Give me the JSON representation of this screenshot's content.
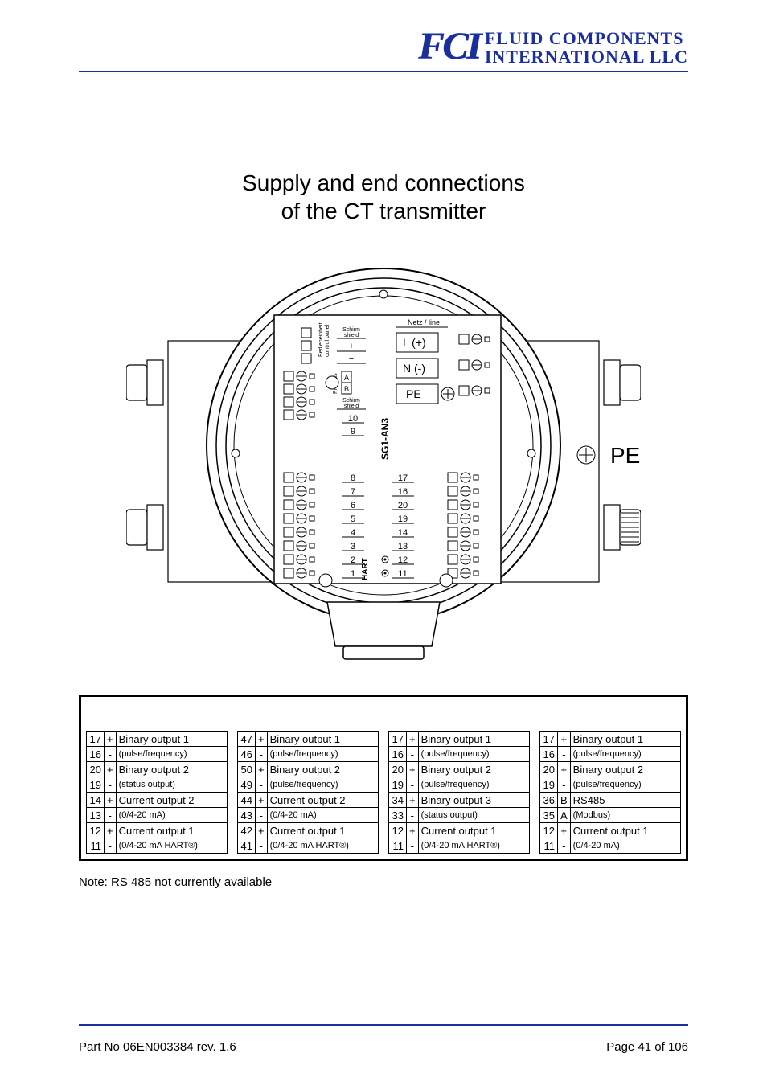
{
  "logo": {
    "abbrev": "FCI",
    "line1": "FLUID COMPONENTS",
    "line2": "INTERNATIONAL LLC"
  },
  "title_line1": "Supply and end connections",
  "title_line2": "of the CT transmitter",
  "diagram": {
    "pe_label": "PE",
    "netz": "Netz / line",
    "L": "L (+)",
    "N": "N (-)",
    "PE": "PE",
    "schirm": "Schirm\nshield",
    "control": "Bedieneinheit\ncontrol panel",
    "profibus": "Profibus\nDP",
    "sg1": "SG1-AN3",
    "hart": "HART",
    "left_upper": [
      "",
      "",
      "",
      ""
    ],
    "mid_upper": [
      "10",
      "9"
    ],
    "left_lower": [
      "8",
      "7",
      "6",
      "5",
      "4",
      "3",
      "2",
      "1"
    ],
    "mid_lower": [
      "17",
      "16",
      "20",
      "19",
      "14",
      "13",
      "12",
      "11"
    ]
  },
  "columns": [
    [
      {
        "n": "17",
        "s": "+",
        "l": "Binary output 1",
        "sm": false
      },
      {
        "n": "16",
        "s": "-",
        "l": "(pulse/frequency)",
        "sm": true
      },
      {
        "n": "20",
        "s": "+",
        "l": "Binary output 2",
        "sm": false
      },
      {
        "n": "19",
        "s": "-",
        "l": "(status output)",
        "sm": true
      },
      {
        "n": "14",
        "s": "+",
        "l": "Current output 2",
        "sm": false
      },
      {
        "n": "13",
        "s": "-",
        "l": "(0/4-20 mA)",
        "sm": true
      },
      {
        "n": "12",
        "s": "+",
        "l": "Current output 1",
        "sm": false
      },
      {
        "n": "11",
        "s": "-",
        "l": "(0/4-20 mA HART®)",
        "sm": true
      }
    ],
    [
      {
        "n": "47",
        "s": "+",
        "l": "Binary output 1",
        "sm": false
      },
      {
        "n": "46",
        "s": "-",
        "l": "(pulse/frequency)",
        "sm": true
      },
      {
        "n": "50",
        "s": "+",
        "l": "Binary output 2",
        "sm": false
      },
      {
        "n": "49",
        "s": "-",
        "l": "(pulse/frequency)",
        "sm": true
      },
      {
        "n": "44",
        "s": "+",
        "l": "Current output 2",
        "sm": false
      },
      {
        "n": "43",
        "s": "-",
        "l": "(0/4-20 mA)",
        "sm": true
      },
      {
        "n": "42",
        "s": "+",
        "l": "Current output 1",
        "sm": false
      },
      {
        "n": "41",
        "s": "-",
        "l": "(0/4-20 mA HART®)",
        "sm": true
      }
    ],
    [
      {
        "n": "17",
        "s": "+",
        "l": "Binary output 1",
        "sm": false
      },
      {
        "n": "16",
        "s": "-",
        "l": "(pulse/frequency)",
        "sm": true
      },
      {
        "n": "20",
        "s": "+",
        "l": "Binary output 2",
        "sm": false
      },
      {
        "n": "19",
        "s": "-",
        "l": "(pulse/frequency)",
        "sm": true
      },
      {
        "n": "34",
        "s": "+",
        "l": "Binary output 3",
        "sm": false
      },
      {
        "n": "33",
        "s": "-",
        "l": "(status output)",
        "sm": true
      },
      {
        "n": "12",
        "s": "+",
        "l": "Current output 1",
        "sm": false
      },
      {
        "n": "11",
        "s": "-",
        "l": "(0/4-20 mA HART®)",
        "sm": true
      }
    ],
    [
      {
        "n": "17",
        "s": "+",
        "l": "Binary output 1",
        "sm": false
      },
      {
        "n": "16",
        "s": "-",
        "l": "(pulse/frequency)",
        "sm": true
      },
      {
        "n": "20",
        "s": "+",
        "l": "Binary output 2",
        "sm": false
      },
      {
        "n": "19",
        "s": "-",
        "l": "(pulse/frequency)",
        "sm": true
      },
      {
        "n": "36",
        "s": "B",
        "l": "RS485",
        "sm": false
      },
      {
        "n": "35",
        "s": "A",
        "l": "(Modbus)",
        "sm": true
      },
      {
        "n": "12",
        "s": "+",
        "l": "Current output 1",
        "sm": false
      },
      {
        "n": "11",
        "s": "-",
        "l": "(0/4-20 mA)",
        "sm": true
      }
    ]
  ],
  "note": "Note: RS 485 not currently available",
  "footer": {
    "left": "Part No 06EN003384 rev. 1.6",
    "right": "Page 41 of 106"
  },
  "colors": {
    "brand": "#1a2e9e",
    "text": "#000000",
    "background": "#ffffff"
  }
}
